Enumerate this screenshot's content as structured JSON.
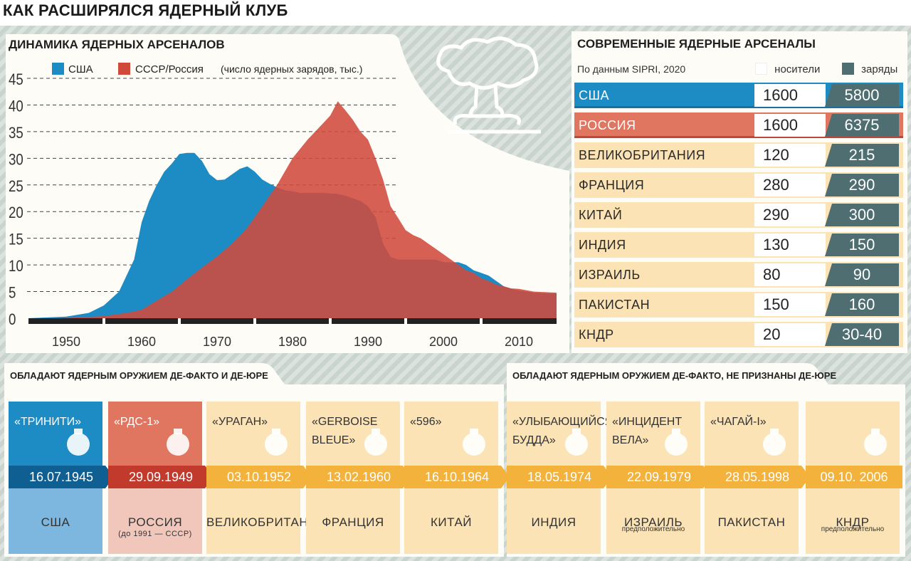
{
  "title": "КАК РАСШИРЯЛСЯ ЯДЕРНЫЙ КЛУБ",
  "left_panel": {
    "title": "ДИНАМИКА ЯДЕРНЫХ АРСЕНАЛОВ"
  },
  "chart_data": {
    "type": "area",
    "title": "ДИНАМИКА ЯДЕРНЫХ АРСЕНАЛОВ",
    "note": "(число ядерных зарядов, тыс.)",
    "ylim": [
      0,
      45
    ],
    "yticks": [
      "0",
      "5",
      "10",
      "15",
      "20",
      "25",
      "30",
      "35",
      "40",
      "45"
    ],
    "xlim": [
      1945,
      2015
    ],
    "xticks": [
      "1950",
      "1960",
      "1970",
      "1980",
      "1990",
      "2000",
      "2010"
    ],
    "grid": true,
    "legend_position": "top",
    "series": [
      {
        "name": "США",
        "color": "#1e8cc4",
        "points": [
          [
            1945,
            0
          ],
          [
            1950,
            0.3
          ],
          [
            1953,
            1
          ],
          [
            1955,
            2.4
          ],
          [
            1957,
            5
          ],
          [
            1959,
            11
          ],
          [
            1960,
            18
          ],
          [
            1961,
            22
          ],
          [
            1962,
            25
          ],
          [
            1963,
            27.5
          ],
          [
            1964,
            29
          ],
          [
            1965,
            30.8
          ],
          [
            1966,
            31
          ],
          [
            1967,
            31
          ],
          [
            1968,
            29.5
          ],
          [
            1969,
            27
          ],
          [
            1970,
            25.9
          ],
          [
            1971,
            26
          ],
          [
            1972,
            27
          ],
          [
            1973,
            28
          ],
          [
            1974,
            28.5
          ],
          [
            1975,
            27.5
          ],
          [
            1976,
            26
          ],
          [
            1977,
            25.2
          ],
          [
            1978,
            24.5
          ],
          [
            1979,
            24
          ],
          [
            1980,
            23.8
          ],
          [
            1981,
            23.5
          ],
          [
            1982,
            23.5
          ],
          [
            1983,
            23.5
          ],
          [
            1984,
            23.5
          ],
          [
            1985,
            23.4
          ],
          [
            1986,
            23.3
          ],
          [
            1987,
            23
          ],
          [
            1988,
            22.5
          ],
          [
            1989,
            22
          ],
          [
            1990,
            21
          ],
          [
            1991,
            19
          ],
          [
            1992,
            14
          ],
          [
            1993,
            11.5
          ],
          [
            1994,
            11
          ],
          [
            1995,
            11
          ],
          [
            1996,
            11
          ],
          [
            1997,
            11
          ],
          [
            1998,
            11
          ],
          [
            1999,
            11
          ],
          [
            2000,
            10.5
          ],
          [
            2001,
            10.5
          ],
          [
            2002,
            10.5
          ],
          [
            2003,
            10
          ],
          [
            2004,
            9
          ],
          [
            2005,
            8.5
          ],
          [
            2006,
            8
          ],
          [
            2007,
            7
          ],
          [
            2008,
            6
          ],
          [
            2009,
            5.5
          ],
          [
            2010,
            5.2
          ],
          [
            2012,
            4.8
          ],
          [
            2015,
            4.6
          ]
        ]
      },
      {
        "name": "СССР/Россия",
        "color": "#d04a3c",
        "points": [
          [
            1945,
            0
          ],
          [
            1949,
            0
          ],
          [
            1951,
            0.1
          ],
          [
            1955,
            0.4
          ],
          [
            1958,
            1
          ],
          [
            1960,
            1.6
          ],
          [
            1962,
            3.3
          ],
          [
            1964,
            5
          ],
          [
            1966,
            7.3
          ],
          [
            1968,
            9.5
          ],
          [
            1970,
            11.6
          ],
          [
            1972,
            14
          ],
          [
            1974,
            17
          ],
          [
            1976,
            21
          ],
          [
            1978,
            25.1
          ],
          [
            1980,
            30
          ],
          [
            1982,
            33.5
          ],
          [
            1984,
            36.5
          ],
          [
            1985,
            38
          ],
          [
            1986,
            40.7
          ],
          [
            1987,
            39
          ],
          [
            1988,
            37.2
          ],
          [
            1989,
            35
          ],
          [
            1990,
            33.5
          ],
          [
            1991,
            30
          ],
          [
            1992,
            26
          ],
          [
            1993,
            21
          ],
          [
            1994,
            18.8
          ],
          [
            1995,
            16.5
          ],
          [
            1996,
            15.6
          ],
          [
            1997,
            15
          ],
          [
            1998,
            14
          ],
          [
            1999,
            13
          ],
          [
            2000,
            12
          ],
          [
            2001,
            11
          ],
          [
            2002,
            10
          ],
          [
            2003,
            9
          ],
          [
            2004,
            8.5
          ],
          [
            2005,
            7.5
          ],
          [
            2006,
            7
          ],
          [
            2007,
            6.3
          ],
          [
            2008,
            6
          ],
          [
            2009,
            5.6
          ],
          [
            2010,
            5.5
          ],
          [
            2012,
            5
          ],
          [
            2015,
            4.8
          ]
        ]
      }
    ]
  },
  "arsenals": {
    "title": "СОВРЕМЕННЫЕ ЯДЕРНЫЕ АРСЕНАЛЫ",
    "source": "По данным SIPRI, 2020",
    "legend_carriers": "носители",
    "legend_warheads": "заряды",
    "rows": [
      {
        "country": "США",
        "carriers": "1600",
        "warheads": "5800"
      },
      {
        "country": "РОССИЯ",
        "carriers": "1600",
        "warheads": "6375"
      },
      {
        "country": "ВЕЛИКОБРИТАНИЯ",
        "carriers": "120",
        "warheads": "215"
      },
      {
        "country": "ФРАНЦИЯ",
        "carriers": "280",
        "warheads": "290"
      },
      {
        "country": "КИТАЙ",
        "carriers": "290",
        "warheads": "300"
      },
      {
        "country": "ИНДИЯ",
        "carriers": "130",
        "warheads": "150"
      },
      {
        "country": "ИЗРАИЛЬ",
        "carriers": "80",
        "warheads": "90"
      },
      {
        "country": "ПАКИСТАН",
        "carriers": "150",
        "warheads": "160"
      },
      {
        "country": "КНДР",
        "carriers": "20",
        "warheads": "30-40"
      }
    ]
  },
  "timeline": {
    "group1_title": "ОБЛАДАЮТ ЯДЕРНЫМ ОРУЖИЕМ ДЕ-ФАКТО И ДЕ-ЮРЕ",
    "group2_title": "ОБЛАДАЮТ ЯДЕРНЫМ ОРУЖИЕМ ДЕ-ФАКТО, НЕ ПРИЗНАНЫ ДЕ-ЮРЕ",
    "tests": [
      {
        "name": "«ТРИНИТИ»",
        "date": "16.07.1945",
        "country": "США",
        "sub": "",
        "note": ""
      },
      {
        "name": "«РДС-1»",
        "date": "29.09.1949",
        "country": "РОССИЯ",
        "sub": "(до 1991 — СССР)",
        "note": ""
      },
      {
        "name": "«УРАГАН»",
        "date": "03.10.1952",
        "country": "ВЕЛИКОБРИТАНИЯ",
        "sub": "",
        "note": ""
      },
      {
        "name": "«GERBOISE BLEUE»",
        "date": "13.02.1960",
        "country": "ФРАНЦИЯ",
        "sub": "",
        "note": ""
      },
      {
        "name": "«596»",
        "date": "16.10.1964",
        "country": "КИТАЙ",
        "sub": "",
        "note": ""
      },
      {
        "name": "«УЛЫБАЮЩИЙСЯ БУДДА»",
        "date": "18.05.1974",
        "country": "ИНДИЯ",
        "sub": "",
        "note": ""
      },
      {
        "name": "«ИНЦИДЕНТ ВЕЛА»",
        "date": "22.09.1979",
        "country": "ИЗРАИЛЬ",
        "sub": "",
        "note": "предположительно"
      },
      {
        "name": "«ЧАГАЙ-I»",
        "date": "28.05.1998",
        "country": "ПАКИСТАН",
        "sub": "",
        "note": ""
      },
      {
        "name": "",
        "date": "09.10. 2006",
        "country": "КНДР",
        "sub": "",
        "note": "предположительно"
      }
    ]
  },
  "colors": {
    "usa": "#1e8cc4",
    "russia": "#d04a3c",
    "cream": "#fbe3b5",
    "orange": "#f3b23c",
    "teal": "#4e6e72"
  }
}
